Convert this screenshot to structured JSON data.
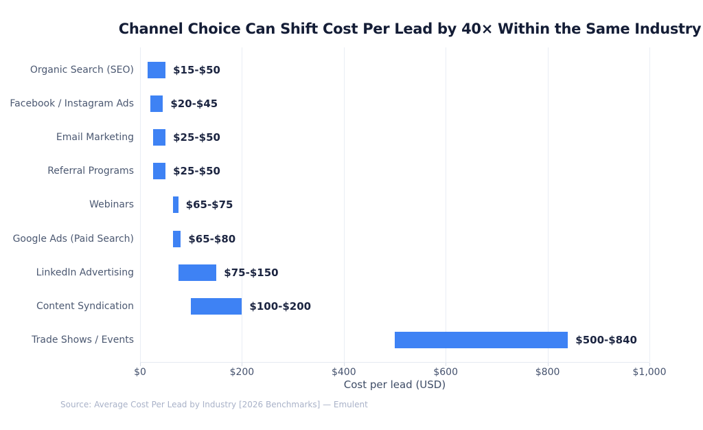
{
  "title": "Channel Choice Can Shift Cost Per Lead by 40× Within the Same Industry",
  "source_note": "Source: Average Cost Per Lead by Industry [2026 Benchmarks] — Emulent",
  "chart_data": {
    "type": "bar",
    "subtype": "horizontal-range-bars",
    "title": "Channel Choice Can Shift Cost Per Lead by 40× Within the Same Industry",
    "xlabel": "Cost per lead (USD)",
    "ylabel": "",
    "xlim": [
      0,
      1000
    ],
    "xticks": [
      0,
      200,
      400,
      600,
      800,
      1000
    ],
    "xtick_labels": [
      "$0",
      "$200",
      "$400",
      "$600",
      "$800",
      "$1,000"
    ],
    "grid": true,
    "legend": "none",
    "categories": [
      "Organic Search (SEO)",
      "Facebook / Instagram Ads",
      "Email Marketing",
      "Referral Programs",
      "Webinars",
      "Google Ads (Paid Search)",
      "LinkedIn Advertising",
      "Content Syndication",
      "Trade Shows / Events"
    ],
    "series": [
      {
        "name": "Cost per lead range (USD)",
        "low": [
          15,
          20,
          25,
          25,
          65,
          65,
          75,
          100,
          500
        ],
        "high": [
          50,
          45,
          50,
          50,
          75,
          80,
          150,
          200,
          840
        ]
      }
    ],
    "bar_labels": [
      "$15-$50",
      "$20-$45",
      "$25-$50",
      "$25-$50",
      "$65-$75",
      "$65-$80",
      "$75-$150",
      "$100-$200",
      "$500-$840"
    ]
  },
  "colors": {
    "background": "#FFFFFF",
    "bar": "#3E82F4",
    "title": "#141D36",
    "category_label": "#4B5871",
    "value_label": "#1B2440",
    "tick_label": "#44516D",
    "axis_title": "#3E4C66",
    "gridline": "#E9EDF4",
    "axis_line": "#E4E9F1",
    "source": "#A9B2C8"
  }
}
